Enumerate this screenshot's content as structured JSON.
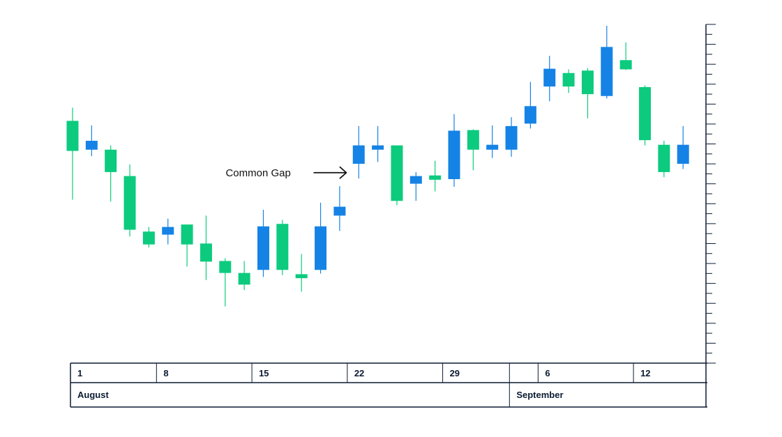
{
  "chart_data": {
    "type": "candlestick",
    "title": "",
    "xlabel": "",
    "ylabel": "",
    "ylim": [
      0,
      100
    ],
    "grid": false,
    "colors": {
      "up": "#0ccb7e",
      "down": "#1583e5",
      "axis": "#0c1b33",
      "annotation": "#111111"
    },
    "candles": [
      {
        "color": "up",
        "high": 73.3,
        "low": 43.3,
        "open": 59.2,
        "close": 69.0
      },
      {
        "color": "down",
        "high": 67.5,
        "low": 57.5,
        "open": 62.5,
        "close": 59.6
      },
      {
        "color": "up",
        "high": 61.0,
        "low": 42.7,
        "open": 52.3,
        "close": 59.6
      },
      {
        "color": "up",
        "high": 54.8,
        "low": 31.3,
        "open": 33.5,
        "close": 51.0
      },
      {
        "color": "up",
        "high": 34.4,
        "low": 27.7,
        "open": 28.7,
        "close": 32.9
      },
      {
        "color": "down",
        "high": 37.1,
        "low": 28.7,
        "open": 31.9,
        "close": 34.4
      },
      {
        "color": "up",
        "high": 34.8,
        "low": 21.5,
        "open": 28.7,
        "close": 35.2
      },
      {
        "color": "up",
        "high": 38.1,
        "low": 17.1,
        "open": 23.1,
        "close": 29.0
      },
      {
        "color": "up",
        "high": 24.2,
        "low": 8.5,
        "open": 19.4,
        "close": 23.3
      },
      {
        "color": "up",
        "high": 23.3,
        "low": 13.8,
        "open": 15.6,
        "close": 19.4
      },
      {
        "color": "down",
        "high": 40.0,
        "low": 18.1,
        "open": 20.4,
        "close": 34.6
      },
      {
        "color": "up",
        "high": 36.7,
        "low": 18.7,
        "open": 20.4,
        "close": 35.4
      },
      {
        "color": "up",
        "high": 25.6,
        "low": 13.3,
        "open": 17.7,
        "close": 19.0
      },
      {
        "color": "down",
        "high": 42.3,
        "low": 19.2,
        "open": 20.4,
        "close": 34.6
      },
      {
        "color": "down",
        "high": 47.7,
        "low": 33.1,
        "open": 38.1,
        "close": 41.0
      },
      {
        "color": "down",
        "high": 67.3,
        "low": 50.2,
        "open": 55.0,
        "close": 61.0
      },
      {
        "color": "down",
        "high": 67.3,
        "low": 55.6,
        "open": 59.6,
        "close": 61.0
      },
      {
        "color": "up",
        "high": 61.0,
        "low": 41.5,
        "open": 42.9,
        "close": 61.0
      },
      {
        "color": "down",
        "high": 52.3,
        "low": 42.9,
        "open": 48.5,
        "close": 51.0
      },
      {
        "color": "up",
        "high": 56.0,
        "low": 46.0,
        "open": 49.8,
        "close": 51.2
      },
      {
        "color": "down",
        "high": 71.2,
        "low": 47.5,
        "open": 50.0,
        "close": 65.8
      },
      {
        "color": "up",
        "high": 66.2,
        "low": 52.9,
        "open": 59.6,
        "close": 66.0
      },
      {
        "color": "down",
        "high": 67.5,
        "low": 56.9,
        "open": 59.6,
        "close": 61.2
      },
      {
        "color": "down",
        "high": 70.2,
        "low": 57.3,
        "open": 59.6,
        "close": 67.3
      },
      {
        "color": "down",
        "high": 81.7,
        "low": 66.5,
        "open": 68.1,
        "close": 73.8
      },
      {
        "color": "down",
        "high": 90.2,
        "low": 75.4,
        "open": 80.2,
        "close": 86.0
      },
      {
        "color": "up",
        "high": 85.8,
        "low": 78.1,
        "open": 80.2,
        "close": 84.6
      },
      {
        "color": "up",
        "high": 86.2,
        "low": 69.8,
        "open": 77.7,
        "close": 85.4
      },
      {
        "color": "down",
        "high": 100.0,
        "low": 76.3,
        "open": 77.1,
        "close": 93.1
      },
      {
        "color": "up",
        "high": 94.6,
        "low": 85.6,
        "open": 85.8,
        "close": 88.8
      },
      {
        "color": "up",
        "high": 80.6,
        "low": 61.0,
        "open": 62.7,
        "close": 80.0
      },
      {
        "color": "up",
        "high": 62.5,
        "low": 50.6,
        "open": 52.3,
        "close": 61.2
      },
      {
        "color": "down",
        "high": 67.3,
        "low": 53.3,
        "open": 55.0,
        "close": 61.2
      }
    ],
    "x_axis": {
      "days": [
        {
          "label": "1",
          "align_to_candle": 0
        },
        {
          "label": "8",
          "align_to_candle": 5
        },
        {
          "label": "15",
          "align_to_candle": 10
        },
        {
          "label": "22",
          "align_to_candle": 15
        },
        {
          "label": "29",
          "align_to_candle": 20
        },
        {
          "label": "",
          "align_to_candle": 23.5
        },
        {
          "label": "6",
          "align_to_candle": 25
        },
        {
          "label": "12",
          "align_to_candle": 30
        }
      ],
      "months": [
        {
          "label": "August",
          "align_to_candle": 0
        },
        {
          "label": "September",
          "align_to_candle": 23.5
        }
      ]
    },
    "annotations": [
      {
        "text": "Common Gap",
        "y": 52.1,
        "arrow": "right",
        "between_candles": [
          14,
          15
        ]
      }
    ]
  }
}
